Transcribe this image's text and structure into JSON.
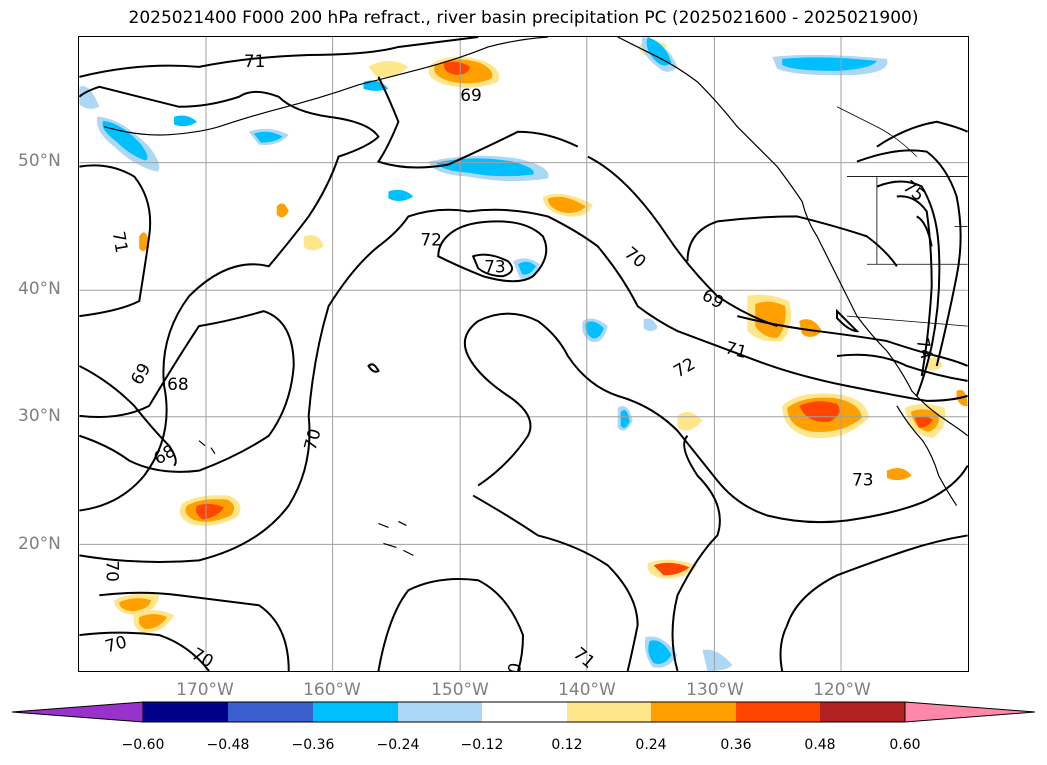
{
  "title": "2025021400 F000 200 hPa refract., river basin precipitation PC (2025021600 - 2025021900)",
  "lat_labels": [
    "50°N",
    "40°N",
    "30°N",
    "20°N"
  ],
  "lon_labels": [
    "170°W",
    "160°W",
    "150°W",
    "140°W",
    "130°W",
    "120°W"
  ],
  "contour_labels": [
    "71",
    "69",
    "72",
    "73",
    "70",
    "69",
    "71",
    "72",
    "71",
    "68",
    "69",
    "68",
    "70",
    "70",
    "70",
    "70",
    "71",
    "73",
    "75",
    "74",
    "0"
  ],
  "colorbar": {
    "ticks": [
      "−0.60",
      "−0.48",
      "−0.36",
      "−0.24",
      "−0.12",
      "0.12",
      "0.24",
      "0.36",
      "0.48",
      "0.60"
    ],
    "colors": [
      "#9932cc",
      "#00008b",
      "#3a5fcd",
      "#00bfff",
      "#add8f5",
      "#ffffff",
      "#ffe68a",
      "#ffa000",
      "#ff4500",
      "#b22222",
      "#ff88aa"
    ]
  }
}
